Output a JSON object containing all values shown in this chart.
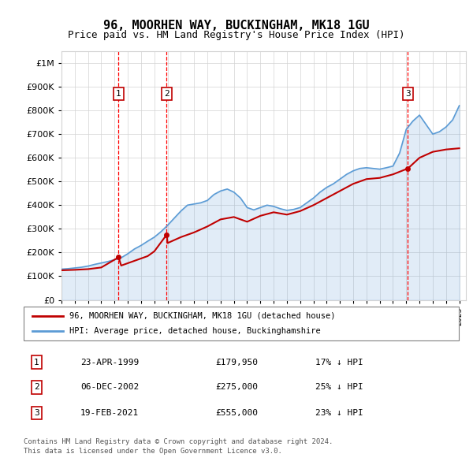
{
  "title": "96, MOORHEN WAY, BUCKINGHAM, MK18 1GU",
  "subtitle": "Price paid vs. HM Land Registry's House Price Index (HPI)",
  "footer_line1": "Contains HM Land Registry data © Crown copyright and database right 2024.",
  "footer_line2": "This data is licensed under the Open Government Licence v3.0.",
  "legend_line1": "96, MOORHEN WAY, BUCKINGHAM, MK18 1GU (detached house)",
  "legend_line2": "HPI: Average price, detached house, Buckinghamshire",
  "transactions": [
    {
      "num": 1,
      "date": "23-APR-1999",
      "price": "£179,950",
      "pct": "17%",
      "dir": "↓",
      "year": 1999.31
    },
    {
      "num": 2,
      "date": "06-DEC-2002",
      "price": "£275,000",
      "pct": "25%",
      "dir": "↓",
      "year": 2002.93
    },
    {
      "num": 3,
      "date": "19-FEB-2021",
      "price": "£555,000",
      "pct": "23%",
      "dir": "↓",
      "year": 2021.13
    }
  ],
  "hpi_color": "#5b9bd5",
  "price_color": "#c00000",
  "marker_box_color": "#c00000",
  "vline_color": "#ff0000",
  "ylim_max": 1000000,
  "xlim_start": 1995,
  "xlim_end": 2025.5,
  "hpi_years": [
    1995,
    1995.5,
    1996,
    1996.5,
    1997,
    1997.5,
    1998,
    1998.5,
    1999,
    1999.5,
    2000,
    2000.5,
    2001,
    2001.5,
    2002,
    2002.5,
    2003,
    2003.5,
    2004,
    2004.5,
    2005,
    2005.5,
    2006,
    2006.5,
    2007,
    2007.5,
    2008,
    2008.5,
    2009,
    2009.5,
    2010,
    2010.5,
    2011,
    2011.5,
    2012,
    2012.5,
    2013,
    2013.5,
    2014,
    2014.5,
    2015,
    2015.5,
    2016,
    2016.5,
    2017,
    2017.5,
    2018,
    2018.5,
    2019,
    2019.5,
    2020,
    2020.5,
    2021,
    2021.5,
    2022,
    2022.5,
    2023,
    2023.5,
    2024,
    2024.5,
    2025
  ],
  "hpi_vals": [
    130000,
    132000,
    135000,
    138000,
    143000,
    150000,
    156000,
    162000,
    170000,
    178000,
    195000,
    215000,
    230000,
    248000,
    265000,
    288000,
    315000,
    345000,
    375000,
    400000,
    405000,
    410000,
    420000,
    445000,
    460000,
    468000,
    455000,
    430000,
    390000,
    380000,
    390000,
    400000,
    395000,
    385000,
    378000,
    382000,
    390000,
    410000,
    430000,
    455000,
    475000,
    490000,
    510000,
    530000,
    545000,
    555000,
    558000,
    555000,
    552000,
    558000,
    565000,
    620000,
    720000,
    755000,
    780000,
    740000,
    700000,
    710000,
    730000,
    760000,
    820000
  ],
  "price_line_years": [
    1995,
    1996,
    1997,
    1998,
    1999.31,
    1999.5,
    2000,
    2000.5,
    2001,
    2001.5,
    2002,
    2002.93,
    2003,
    2004,
    2005,
    2006,
    2007,
    2008,
    2009,
    2010,
    2011,
    2012,
    2013,
    2014,
    2015,
    2016,
    2017,
    2018,
    2019,
    2020,
    2021.13,
    2022,
    2023,
    2024,
    2025
  ],
  "price_line_vals": [
    125000,
    127000,
    130000,
    137000,
    179950,
    145000,
    155000,
    165000,
    175000,
    185000,
    205000,
    275000,
    240000,
    265000,
    285000,
    310000,
    340000,
    350000,
    330000,
    355000,
    370000,
    360000,
    375000,
    400000,
    430000,
    460000,
    490000,
    510000,
    515000,
    530000,
    555000,
    600000,
    625000,
    635000,
    640000
  ],
  "price_data_years": [
    1999.31,
    2002.93,
    2021.13
  ],
  "price_data_vals": [
    179950,
    275000,
    555000
  ]
}
